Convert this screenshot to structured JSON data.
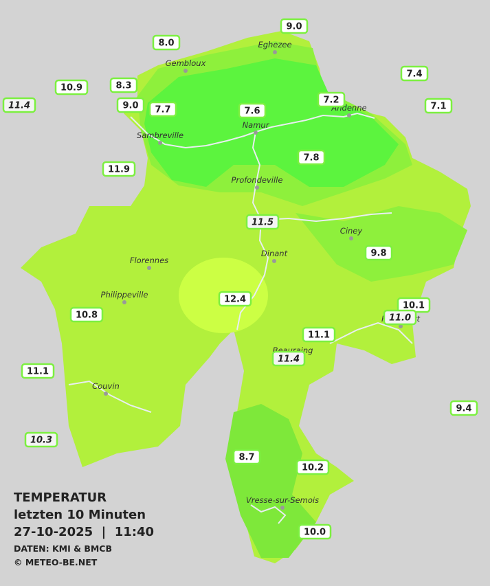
{
  "map": {
    "stations": [
      {
        "label": "9.0",
        "italic": false
      },
      {
        "label": "8.0",
        "italic": false
      },
      {
        "label": "7.4",
        "italic": false
      },
      {
        "label": "10.9",
        "italic": false
      },
      {
        "label": "8.3",
        "italic": false
      },
      {
        "label": "11.4",
        "italic": true
      },
      {
        "label": "9.0",
        "italic": false
      },
      {
        "label": "7.7",
        "italic": false
      },
      {
        "label": "7.6",
        "italic": false
      },
      {
        "label": "7.2",
        "italic": false
      },
      {
        "label": "7.1",
        "italic": false
      },
      {
        "label": "7.8",
        "italic": false
      },
      {
        "label": "11.9",
        "italic": false
      },
      {
        "label": "11.5",
        "italic": true
      },
      {
        "label": "9.8",
        "italic": false
      },
      {
        "label": "12.4",
        "italic": false
      },
      {
        "label": "10.1",
        "italic": false
      },
      {
        "label": "10.8",
        "italic": false
      },
      {
        "label": "11.0",
        "italic": true
      },
      {
        "label": "11.1",
        "italic": false
      },
      {
        "label": "11.4",
        "italic": true
      },
      {
        "label": "11.1",
        "italic": false
      },
      {
        "label": "9.4",
        "italic": false
      },
      {
        "label": "10.3",
        "italic": true
      },
      {
        "label": "8.7",
        "italic": false
      },
      {
        "label": "10.2",
        "italic": false
      },
      {
        "label": "10.0",
        "italic": false
      }
    ],
    "cities": [
      "Eghezee",
      "Gembloux",
      "Andenne",
      "Namur",
      "Sambreville",
      "Profondeville",
      "Ciney",
      "Dinant",
      "Florennes",
      "Philippeville",
      "Rochefort",
      "Beauraing",
      "Couvin",
      "Vresse-sur-Semois"
    ],
    "legend": {
      "title": "TEMPERATUR",
      "period": "letzten 10 Minuten",
      "timestamp": "27-10-2025  |  11:40",
      "source": "DATEN: KMI & BMCB",
      "copyright": "© METEO-BE.NET"
    }
  }
}
